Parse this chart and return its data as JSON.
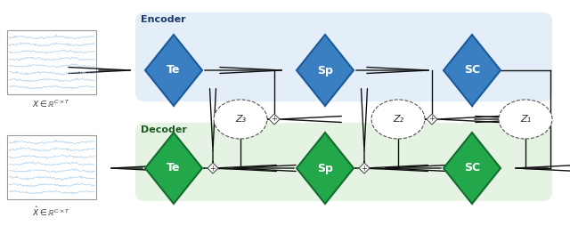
{
  "fig_width": 6.4,
  "fig_height": 2.54,
  "dpi": 100,
  "bg_color": "#ffffff",
  "encoder_bg": "#cce0f5",
  "decoder_bg": "#cde8c8",
  "blue_diamond_color": "#3a7fc1",
  "green_diamond_color": "#22a84a",
  "blue_edge_color": "#1a5a9a",
  "green_edge_color": "#136b2e",
  "encoder_label": "Encoder",
  "decoder_label": "Decoder",
  "enc_diamonds": [
    "Te",
    "Sp",
    "SC"
  ],
  "dec_diamonds": [
    "Te",
    "Sp",
    "SC"
  ],
  "z_labels": [
    "Z₃",
    "Z₂",
    "Z₁"
  ],
  "signal_color": "#aacce8",
  "arrow_color": "#111111",
  "node_edge": "#555555"
}
